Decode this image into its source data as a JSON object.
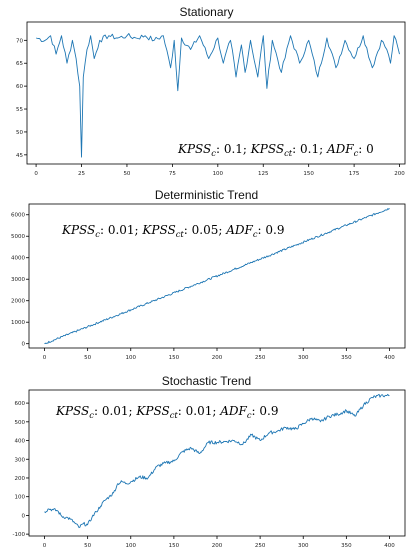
{
  "colors": {
    "line": "#1f77b4",
    "axis": "#000000",
    "text": "#222222"
  },
  "chart_data": [
    {
      "type": "line",
      "title": "Stationary",
      "xlabel": "",
      "ylabel": "",
      "xlim": [
        -5,
        203
      ],
      "ylim": [
        43,
        74
      ],
      "xticks": [
        "0",
        "25",
        "50",
        "75",
        "100",
        "125",
        "150",
        "175",
        "200"
      ],
      "yticks": [
        "45",
        "50",
        "55",
        "60",
        "65",
        "70"
      ],
      "annotation": {
        "kpss_c": "0.1",
        "kpss_ct": "0.1",
        "adf_c": "0"
      },
      "x_key": [
        0,
        5,
        8,
        11,
        14,
        17,
        20,
        22,
        24,
        25,
        26,
        28,
        30,
        32,
        35,
        40,
        45,
        50,
        55,
        60,
        65,
        70,
        74,
        76,
        78,
        80,
        85,
        90,
        95,
        100,
        103,
        107,
        110,
        113,
        115,
        118,
        122,
        125,
        127,
        130,
        135,
        140,
        145,
        150,
        155,
        160,
        165,
        170,
        175,
        180,
        185,
        190,
        193,
        195,
        197,
        200
      ],
      "y_key": [
        70.5,
        70,
        71,
        67,
        71,
        65,
        70,
        66,
        60,
        44.5,
        62,
        68,
        71,
        66,
        70,
        71,
        70.5,
        71,
        70.5,
        71,
        70,
        71,
        64,
        70,
        59,
        70.5,
        68,
        71,
        66,
        70.5,
        65,
        70,
        62,
        69,
        63,
        70,
        62,
        71,
        59.5,
        70,
        63,
        71,
        65,
        70,
        62,
        70.5,
        64,
        70,
        66,
        71,
        64,
        70,
        68,
        65,
        71,
        67
      ]
    },
    {
      "type": "line",
      "title": "Deterministic Trend",
      "xlabel": "",
      "ylabel": "",
      "xlim": [
        -18,
        418
      ],
      "ylim": [
        -200,
        6500
      ],
      "xticks": [
        "0",
        "50",
        "100",
        "150",
        "200",
        "250",
        "300",
        "350",
        "400"
      ],
      "yticks": [
        "0",
        "1000",
        "2000",
        "3000",
        "4000",
        "5000",
        "6000"
      ],
      "annotation": {
        "kpss_c": "0.01",
        "kpss_ct": "0.05",
        "adf_c": "0.9"
      },
      "x_key": [
        0,
        400
      ],
      "y_key": [
        0,
        6300
      ]
    },
    {
      "type": "line",
      "title": "Stochastic Trend",
      "xlabel": "",
      "ylabel": "",
      "xlim": [
        -18,
        418
      ],
      "ylim": [
        -110,
        670
      ],
      "xticks": [
        "0",
        "50",
        "100",
        "150",
        "200",
        "250",
        "300",
        "350",
        "400"
      ],
      "yticks": [
        "-100",
        "0",
        "100",
        "200",
        "300",
        "400",
        "500",
        "600"
      ],
      "annotation": {
        "kpss_c": "0.01",
        "kpss_ct": "0.01",
        "adf_c": "0.9"
      },
      "x_key": [
        0,
        5,
        10,
        15,
        20,
        25,
        30,
        35,
        40,
        45,
        50,
        55,
        60,
        65,
        70,
        75,
        80,
        85,
        90,
        95,
        100,
        110,
        120,
        130,
        140,
        150,
        160,
        170,
        180,
        190,
        200,
        210,
        220,
        230,
        240,
        250,
        260,
        270,
        280,
        290,
        300,
        310,
        320,
        330,
        340,
        350,
        360,
        370,
        380,
        390,
        400
      ],
      "y_key": [
        20,
        35,
        30,
        25,
        -5,
        -10,
        -20,
        -40,
        -65,
        -45,
        -50,
        -10,
        20,
        50,
        80,
        100,
        120,
        170,
        180,
        170,
        180,
        205,
        200,
        260,
        280,
        290,
        340,
        360,
        330,
        390,
        390,
        395,
        400,
        380,
        430,
        400,
        440,
        450,
        470,
        460,
        490,
        520,
        500,
        530,
        540,
        560,
        530,
        590,
        630,
        640,
        640
      ]
    }
  ]
}
